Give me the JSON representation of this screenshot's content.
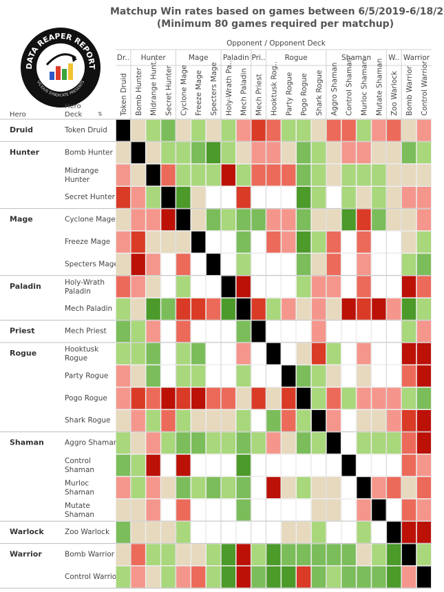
{
  "title_line1": "Matchup Win rates based on games between 6/5/2019-6/18/2019",
  "title_line2": "(Minimum 80 games required per matchup)",
  "logo": {
    "text_top": "DATA REAPER REPORT",
    "text_bottom": "VICIOUS SYNDICATE PRESENTS"
  },
  "header": {
    "opponent_caption": "Opponent  /  Opponent Deck",
    "hero_label": "Hero",
    "deck_label_1": "Hero",
    "deck_label_2": "Deck",
    "sort_icon": "sort-icon"
  },
  "colors": {
    "self": "#000000",
    "blank": "#ffffff",
    "grid": "#e6e6e6",
    "scale": [
      "#bb1107",
      "#d93b27",
      "#ec6a5a",
      "#f5968c",
      "#e6d9be",
      "#a9d77b",
      "#7bbd5a",
      "#4c9a2a"
    ]
  },
  "chart_data": {
    "type": "heatmap",
    "value_encoding": "colour class: 0 = strongly unfavoured (deep red) … 3 = slightly unfavoured, 4 = even (beige), 5 = slightly favoured … 7 = strongly favoured (deep green); -1 = mirror (black); null = not enough games (blank)",
    "classes": [
      "Druid",
      "Hunter",
      "Mage",
      "Paladin",
      "Priest",
      "Rogue",
      "Shaman",
      "Warlock",
      "Warrior"
    ],
    "class_labels_short": [
      "Dr..",
      "Hunter",
      "Mage",
      "Paladin",
      "Pri..",
      "Rogue",
      "Shaman",
      "W..",
      "Warrior"
    ],
    "decks": [
      {
        "name": "Token Druid",
        "label": "Token Druid",
        "cls": 0
      },
      {
        "name": "Bomb Hunter",
        "label": "Bomb Hunter",
        "cls": 1
      },
      {
        "name": "Midrange Hunter",
        "label": "Midrange Hunt..",
        "cls": 1
      },
      {
        "name": "Secret Hunter",
        "label": "Secret Hunter",
        "cls": 1
      },
      {
        "name": "Cyclone Mage",
        "label": "Cyclone Mage",
        "cls": 2
      },
      {
        "name": "Freeze Mage",
        "label": "Freeze Mage",
        "cls": 2
      },
      {
        "name": "Specters Mage",
        "label": "Specters Mage",
        "cls": 2
      },
      {
        "name": "Holy-Wrath Paladin",
        "label": "Holy-Wrath Pa..",
        "cls": 3
      },
      {
        "name": "Mech Paladin",
        "label": "Mech Paladin",
        "cls": 3
      },
      {
        "name": "Mech Priest",
        "label": "Mech Priest",
        "cls": 4
      },
      {
        "name": "Hooktusk Rogue",
        "label": "Hooktusk Rog..",
        "cls": 5
      },
      {
        "name": "Party Rogue",
        "label": "Party Rogue",
        "cls": 5
      },
      {
        "name": "Pogo Rogue",
        "label": "Pogo Rogue",
        "cls": 5
      },
      {
        "name": "Shark Rogue",
        "label": "Shark Rogue",
        "cls": 5
      },
      {
        "name": "Aggro Shaman",
        "label": "Aggro Shaman",
        "cls": 6
      },
      {
        "name": "Control Shaman",
        "label": "Control Shaman",
        "cls": 6
      },
      {
        "name": "Murloc Shaman",
        "label": "Murloc Shaman",
        "cls": 6
      },
      {
        "name": "Mutate Shaman",
        "label": "Mutate Shaman",
        "cls": 6
      },
      {
        "name": "Zoo Warlock",
        "label": "Zoo Warlock",
        "cls": 7
      },
      {
        "name": "Bomb Warrior",
        "label": "Bomb Warrior",
        "cls": 8
      },
      {
        "name": "Control Warrior",
        "label": "Control Warrior",
        "cls": 8
      }
    ],
    "rows": [
      {
        "hero": "Druid",
        "lines": [
          "Token Druid"
        ],
        "values": [
          -1,
          4,
          5,
          6,
          4,
          5,
          4,
          5,
          3,
          1,
          2,
          5,
          5,
          4,
          2,
          2,
          5,
          3,
          2,
          4,
          3
        ]
      },
      {
        "hero": "Hunter",
        "lines": [
          "Bomb Hunter"
        ],
        "values": [
          4,
          -1,
          4,
          5,
          5,
          6,
          7,
          5,
          4,
          3,
          3,
          4,
          6,
          5,
          4,
          3,
          3,
          4,
          4,
          6,
          5
        ]
      },
      {
        "hero": "",
        "lines": [
          "Midrange",
          "Hunter"
        ],
        "values": [
          3,
          4,
          -1,
          2,
          5,
          5,
          5,
          0,
          5,
          2,
          2,
          2,
          6,
          5,
          4,
          5,
          5,
          5,
          4,
          4,
          4
        ]
      },
      {
        "hero": "",
        "lines": [
          "Secret Hunter"
        ],
        "values": [
          1,
          3,
          5,
          -1,
          7,
          4,
          null,
          null,
          1,
          null,
          null,
          null,
          7,
          5,
          null,
          5,
          4,
          5,
          4,
          3,
          3
        ]
      },
      {
        "hero": "Mage",
        "lines": [
          "Cyclone Mage"
        ],
        "values": [
          4,
          3,
          3,
          0,
          -1,
          4,
          6,
          5,
          6,
          6,
          3,
          3,
          6,
          4,
          4,
          7,
          1,
          6,
          4,
          4,
          3
        ]
      },
      {
        "hero": "",
        "lines": [
          "Freeze Mage"
        ],
        "values": [
          3,
          1,
          4,
          4,
          4,
          -1,
          null,
          null,
          6,
          null,
          2,
          3,
          7,
          5,
          2,
          null,
          2,
          null,
          null,
          4,
          5
        ]
      },
      {
        "hero": "",
        "lines": [
          "Specters Mage"
        ],
        "values": [
          4,
          0,
          3,
          null,
          2,
          null,
          -1,
          null,
          5,
          null,
          null,
          null,
          6,
          4,
          2,
          null,
          3,
          null,
          null,
          5,
          6
        ]
      },
      {
        "hero": "Paladin",
        "lines": [
          "Holy-Wrath",
          "Paladin"
        ],
        "values": [
          2,
          3,
          4,
          null,
          5,
          null,
          null,
          -1,
          0,
          null,
          null,
          null,
          5,
          3,
          3,
          null,
          2,
          null,
          null,
          0,
          2
        ]
      },
      {
        "hero": "",
        "lines": [
          "Mech Paladin"
        ],
        "values": [
          5,
          4,
          7,
          6,
          1,
          1,
          2,
          7,
          -1,
          1,
          5,
          3,
          4,
          3,
          4,
          0,
          1,
          0,
          3,
          7,
          5
        ]
      },
      {
        "hero": "Priest",
        "lines": [
          "Mech Priest"
        ],
        "values": [
          6,
          5,
          3,
          null,
          2,
          null,
          null,
          null,
          6,
          -1,
          null,
          null,
          null,
          3,
          null,
          null,
          null,
          null,
          null,
          5,
          3
        ]
      },
      {
        "hero": "Rogue",
        "lines": [
          "Hooktusk",
          "Rogue"
        ],
        "values": [
          5,
          5,
          6,
          null,
          5,
          6,
          null,
          null,
          3,
          null,
          -1,
          null,
          4,
          1,
          5,
          null,
          3,
          null,
          null,
          0,
          0
        ]
      },
      {
        "hero": "",
        "lines": [
          "Party Rogue"
        ],
        "values": [
          3,
          4,
          6,
          null,
          5,
          5,
          null,
          null,
          5,
          null,
          null,
          -1,
          6,
          5,
          4,
          null,
          4,
          null,
          null,
          2,
          0
        ]
      },
      {
        "hero": "",
        "lines": [
          "Pogo Rogue"
        ],
        "values": [
          3,
          1,
          2,
          0,
          1,
          0,
          2,
          2,
          4,
          1,
          4,
          1,
          -1,
          5,
          2,
          5,
          3,
          3,
          3,
          5,
          6
        ]
      },
      {
        "hero": "",
        "lines": [
          "Shark Rogue"
        ],
        "values": [
          4,
          3,
          5,
          2,
          5,
          4,
          4,
          4,
          5,
          null,
          6,
          2,
          5,
          -1,
          3,
          null,
          4,
          4,
          3,
          1,
          0
        ]
      },
      {
        "hero": "Shaman",
        "lines": [
          "Aggro Shaman"
        ],
        "values": [
          5,
          4,
          3,
          5,
          6,
          6,
          5,
          5,
          6,
          5,
          3,
          4,
          6,
          5,
          -1,
          null,
          5,
          5,
          5,
          2,
          0
        ]
      },
      {
        "hero": "",
        "lines": [
          "Control",
          "Shaman"
        ],
        "values": [
          6,
          5,
          0,
          null,
          0,
          null,
          null,
          null,
          7,
          null,
          null,
          null,
          null,
          null,
          null,
          -1,
          null,
          null,
          null,
          2,
          3
        ]
      },
      {
        "hero": "",
        "lines": [
          "Murloc",
          "Shaman"
        ],
        "values": [
          3,
          5,
          3,
          4,
          6,
          5,
          6,
          5,
          6,
          null,
          0,
          4,
          5,
          4,
          4,
          null,
          -1,
          3,
          2,
          4,
          2
        ]
      },
      {
        "hero": "",
        "lines": [
          "Mutate",
          "Shaman"
        ],
        "values": [
          4,
          4,
          3,
          null,
          2,
          null,
          null,
          null,
          6,
          null,
          null,
          null,
          null,
          4,
          4,
          null,
          3,
          -1,
          null,
          2,
          3
        ]
      },
      {
        "hero": "Warlock",
        "lines": [
          "Zoo Warlock"
        ],
        "values": [
          6,
          4,
          4,
          4,
          5,
          null,
          null,
          null,
          null,
          null,
          null,
          4,
          4,
          5,
          null,
          null,
          5,
          null,
          -1,
          0,
          0
        ]
      },
      {
        "hero": "Warrior",
        "lines": [
          "Bomb Warrior"
        ],
        "values": [
          4,
          2,
          5,
          5,
          4,
          4,
          5,
          7,
          0,
          5,
          7,
          6,
          6,
          6,
          6,
          6,
          4,
          5,
          7,
          -1,
          5
        ]
      },
      {
        "hero": "",
        "lines": [
          "Control Warrior"
        ],
        "values": [
          5,
          3,
          4,
          5,
          3,
          2,
          5,
          7,
          0,
          6,
          7,
          7,
          1,
          6,
          5,
          6,
          6,
          6,
          7,
          3,
          -1
        ]
      }
    ]
  }
}
